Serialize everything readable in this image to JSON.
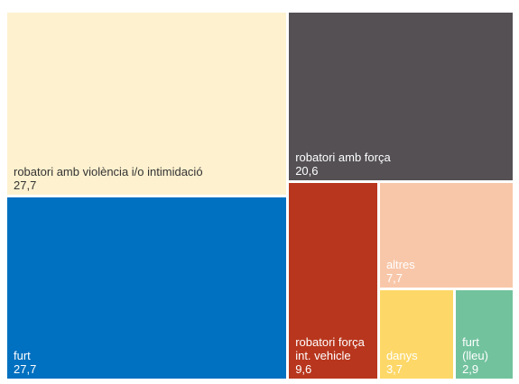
{
  "chart_data": {
    "type": "treemap",
    "categories": [
      "robatori amb violència i/o intimidació",
      "furt",
      "robatori amb força",
      "robatori força int. vehicle",
      "altres",
      "danys",
      "furt (lleu)"
    ],
    "values": [
      27.7,
      27.7,
      20.6,
      9.6,
      7.7,
      3.7,
      2.9
    ],
    "value_labels": [
      "27,7",
      "27,7",
      "20,6",
      "9,6",
      "7,7",
      "3,7",
      "2,9"
    ],
    "colors": [
      "#fef1cf",
      "#0070c0",
      "#545054",
      "#b8361d",
      "#f8c7a9",
      "#fdd868",
      "#72c29e"
    ],
    "label_colors": [
      "#333333",
      "#ffffff",
      "#ffffff",
      "#ffffff",
      "#ffffff",
      "#ffffff",
      "#ffffff"
    ]
  }
}
